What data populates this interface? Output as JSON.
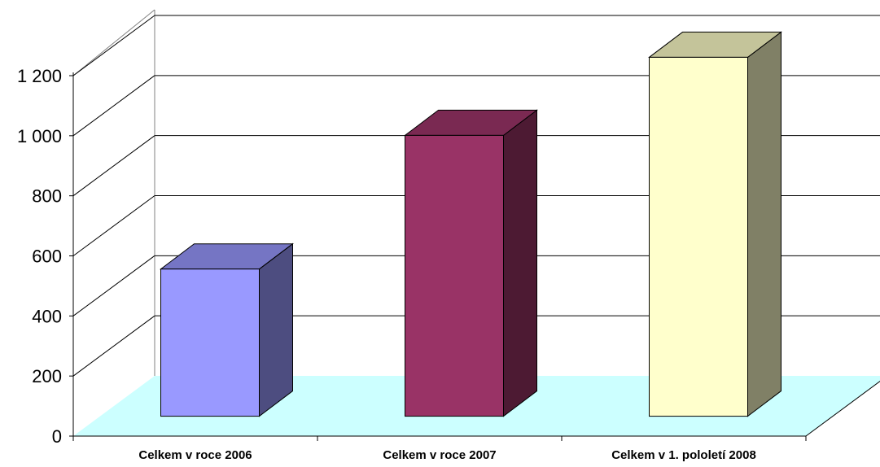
{
  "chart_data": {
    "type": "bar",
    "three_d": true,
    "title": "",
    "xlabel": "",
    "ylabel": "",
    "categories": [
      "Celkem v roce 2006",
      "Celkem v roce 2007",
      "Celkem v 1. pololetí 2008"
    ],
    "values": [
      490,
      935,
      1195
    ],
    "ylim": [
      0,
      1200
    ],
    "yticks": [
      0,
      200,
      400,
      600,
      800,
      1000,
      1200
    ],
    "ytick_labels": [
      "0",
      "200",
      "400",
      "600",
      "800",
      "1 000",
      "1 200"
    ],
    "grid": true,
    "legend": "none",
    "bar_colors": [
      {
        "front": "#9999ff",
        "top": "#7575c4",
        "side": "#4d4d80"
      },
      {
        "front": "#993366",
        "top": "#7a2952",
        "side": "#4d1a33"
      },
      {
        "front": "#ffffcc",
        "top": "#c4c49a",
        "side": "#808066"
      }
    ],
    "floor_color": "#ccffff",
    "gridline_color": "#000000"
  }
}
